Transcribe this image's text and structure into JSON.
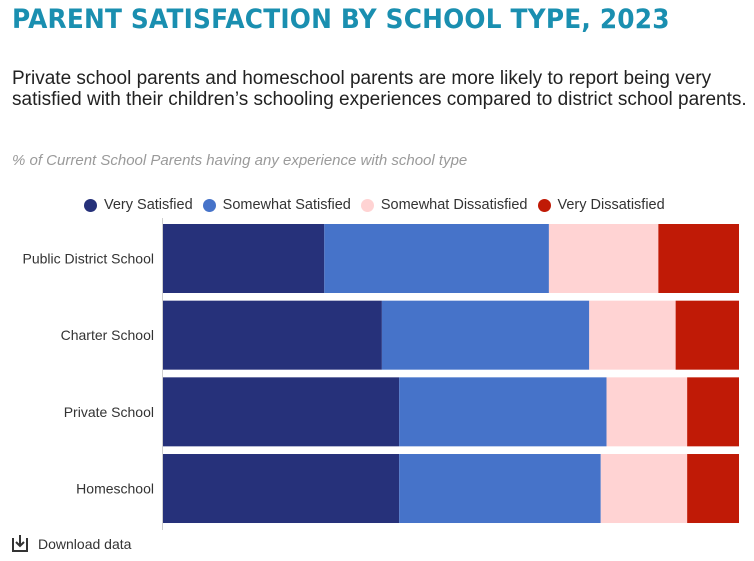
{
  "title": "PARENT SATISFACTION BY SCHOOL TYPE, 2023",
  "subtitle": "Private school parents and homeschool parents are more likely to report being very satisfied with their children’s schooling experiences compared to district school parents.",
  "note": "% of Current School Parents having any experience with school type",
  "download_label": "Download data",
  "chart_data": {
    "type": "bar",
    "orientation": "horizontal",
    "stacked": true,
    "categories": [
      "Public District School",
      "Charter School",
      "Private School",
      "Homeschool"
    ],
    "series": [
      {
        "name": "Very Satisfied",
        "color": "#26317a",
        "values": [
          28,
          38,
          41,
          41
        ]
      },
      {
        "name": "Somewhat Satisfied",
        "color": "#4673c9",
        "values": [
          39,
          36,
          36,
          35
        ]
      },
      {
        "name": "Somewhat Dissatisfied",
        "color": "#ffd3d3",
        "values": [
          19,
          15,
          14,
          15
        ]
      },
      {
        "name": "Very Dissatisfied",
        "color": "#c01a06",
        "values": [
          14,
          11,
          9,
          9
        ]
      }
    ],
    "xlim": [
      0,
      100
    ],
    "legend_position": "top"
  }
}
